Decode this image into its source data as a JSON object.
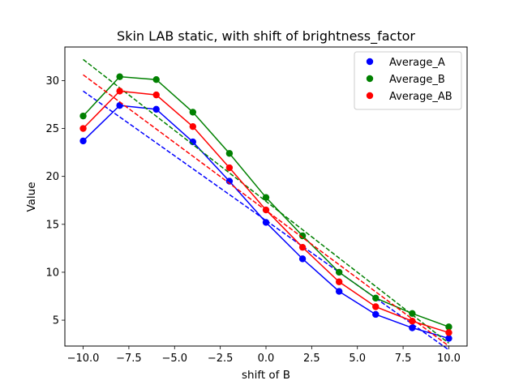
{
  "chart_data": {
    "type": "scatter",
    "title": "Skin LAB static, with shift of brightness_factor",
    "xlabel": "shift of B",
    "ylabel": "Value",
    "xlim": [
      -11,
      11
    ],
    "ylim": [
      2.3,
      33.5
    ],
    "xticks": [
      -10,
      -7.5,
      -5,
      -2.5,
      0,
      2.5,
      5,
      7.5,
      10
    ],
    "xtick_labels": [
      "−10.0",
      "−7.5",
      "−5.0",
      "−2.5",
      "0.0",
      "2.5",
      "5.0",
      "7.5",
      "10.0"
    ],
    "yticks": [
      5,
      10,
      15,
      20,
      25,
      30
    ],
    "ytick_labels": [
      "5",
      "10",
      "15",
      "20",
      "25",
      "30"
    ],
    "grid": false,
    "legend_position": "top-right",
    "x": [
      -10,
      -8,
      -6,
      -4,
      -2,
      0,
      2,
      4,
      6,
      8,
      10
    ],
    "series": [
      {
        "name": "Average_A",
        "color": "#0000ff",
        "values": [
          23.7,
          27.4,
          27.0,
          23.6,
          19.5,
          15.2,
          11.4,
          8.0,
          5.6,
          4.2,
          3.1
        ],
        "fit": [
          28.9,
          1.9
        ]
      },
      {
        "name": "Average_B",
        "color": "#008000",
        "values": [
          26.3,
          30.4,
          30.1,
          26.7,
          22.4,
          17.8,
          13.8,
          10.0,
          7.3,
          5.7,
          4.3
        ],
        "fit": [
          32.2,
          2.6
        ]
      },
      {
        "name": "Average_AB",
        "color": "#ff0000",
        "values": [
          25.0,
          28.9,
          28.5,
          25.2,
          20.9,
          16.5,
          12.6,
          9.0,
          6.4,
          4.9,
          3.7
        ],
        "fit": [
          30.6,
          2.3
        ]
      }
    ]
  }
}
